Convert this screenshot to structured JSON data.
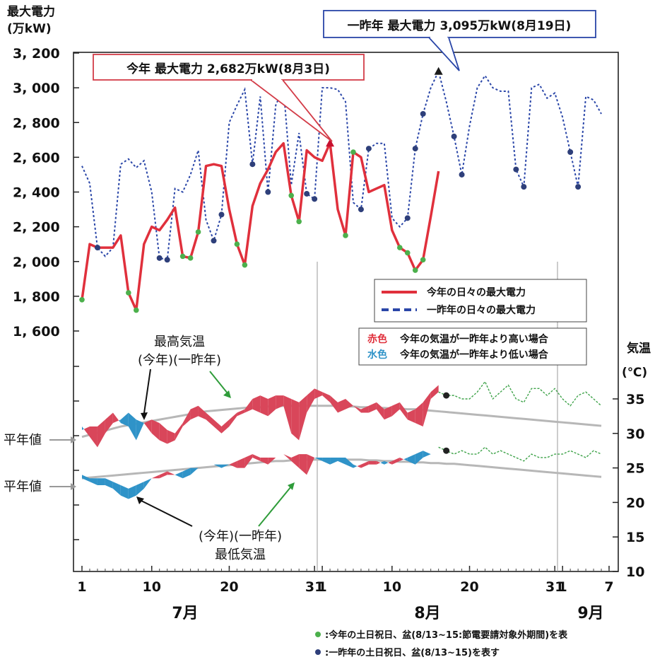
{
  "chart_data": {
    "type": "line",
    "title": "",
    "y_label_left": "最大電力",
    "y_unit_left": "(万kW)",
    "y_ticks_left": [
      "3, 200",
      "3, 000",
      "2, 800",
      "2, 600",
      "2, 400",
      "2, 200",
      "2, 000",
      "1, 800",
      "1, 600"
    ],
    "ylim_left": [
      1600,
      3200
    ],
    "y_label_right": "気温",
    "y_unit_right": "(℃)",
    "y_ticks_right": [
      "35",
      "30",
      "25",
      "20",
      "15",
      "10"
    ],
    "ylim_right": [
      10,
      37
    ],
    "x_ticks": [
      "1",
      "10",
      "20",
      "31",
      "1",
      "10",
      "20",
      "31",
      "1",
      "7"
    ],
    "months": [
      "7月",
      "8月",
      "9月"
    ],
    "x_range_days": [
      1,
      69
    ],
    "grid": "vertical lines at 7/31 and 8/31",
    "legend": {
      "placement": "right-middle",
      "line_this_year": "今年の日々の最大電力",
      "line_two_years_ago": "一昨年の日々の最大電力",
      "red_word": "赤色",
      "red_text": "今年の気温が一昨年より高い場合",
      "blue_word": "水色",
      "blue_text": "今年の気温が一昨年より低い場合"
    },
    "annotations": {
      "peak_this_year": "今年 最大電力 2,682万kW(8月3日)",
      "peak_two_years_ago": "一昨年 最大電力 3,095万kW(8月19日)",
      "max_temp_label": "最高気温",
      "max_temp_sub": "(今年)(一昨年)",
      "min_temp_sub": "(今年)(一昨年)",
      "min_temp_label": "最低気温",
      "normal_label_1": "平年値",
      "normal_label_2": "平年値"
    },
    "series": [
      {
        "name": "今年の日々の最大電力",
        "color": "#e0303c",
        "start_day": 1,
        "values": [
          1780,
          2100,
          2080,
          2080,
          2080,
          2150,
          1820,
          1720,
          2100,
          2200,
          2180,
          2240,
          2310,
          2030,
          2020,
          2170,
          2550,
          2560,
          2550,
          2300,
          2100,
          1980,
          2320,
          2450,
          2530,
          2630,
          2680,
          2380,
          2230,
          2640,
          2600,
          2580,
          2682,
          2300,
          2150,
          2630,
          2600,
          2400,
          2420,
          2440,
          2180,
          2080,
          2050,
          1950,
          2010,
          2260,
          2520
        ],
        "weekend_days": [
          1,
          7,
          8,
          14,
          15,
          16,
          21,
          22,
          28,
          29,
          35,
          36,
          42,
          43,
          44,
          45
        ]
      },
      {
        "name": "一昨年の日々の最大電力",
        "color": "#2a46a8",
        "start_day": 1,
        "values": [
          2550,
          2450,
          2080,
          2030,
          2080,
          2560,
          2590,
          2540,
          2580,
          2400,
          2020,
          2010,
          2420,
          2400,
          2500,
          2640,
          2240,
          2120,
          2270,
          2800,
          2900,
          2990,
          2560,
          2950,
          2400,
          2900,
          3000,
          2440,
          2740,
          2390,
          2360,
          3000,
          3000,
          2990,
          2920,
          2340,
          2300,
          2650,
          2680,
          2680,
          2250,
          2200,
          2250,
          2650,
          2850,
          3000,
          3095,
          2920,
          2720,
          2500,
          2780,
          3000,
          3070,
          3000,
          2980,
          2980,
          2530,
          2430,
          3000,
          3020,
          2940,
          2970,
          2830,
          2630,
          2430,
          2950,
          2930,
          2850
        ],
        "weekend_days": [
          3,
          11,
          12,
          18,
          19,
          23,
          25,
          30,
          31,
          37,
          38,
          43,
          44,
          45,
          49,
          50,
          57,
          58,
          64,
          65
        ]
      },
      {
        "name": "最高気温(今年)",
        "values": [
          30.5,
          31.0,
          31.0,
          32.0,
          33.0,
          31.5,
          31.0,
          29.0,
          31.5,
          32.0,
          31.5,
          30.5,
          30.0,
          31.5,
          33.5,
          34.0,
          33.0,
          32.0,
          31.0,
          32.0,
          33.0,
          33.5,
          35.0,
          35.5,
          35.0,
          35.5,
          35.5,
          35.0,
          34.5,
          35.5,
          36.5,
          36.0,
          35.5,
          34.5,
          35.0,
          34.0,
          33.5,
          34.0,
          34.5,
          33.5,
          34.0,
          34.5,
          33.0,
          33.5,
          34.5,
          36.0,
          37.0
        ]
      },
      {
        "name": "最高気温(一昨年)",
        "values": [
          31.0,
          29.5,
          28.0,
          30.0,
          31.5,
          32.0,
          33.0,
          32.0,
          31.5,
          30.0,
          29.0,
          28.5,
          29.0,
          31.0,
          32.0,
          32.5,
          32.0,
          31.0,
          30.0,
          31.0,
          32.5,
          33.0,
          33.5,
          33.0,
          32.5,
          33.5,
          34.0,
          30.0,
          29.0,
          33.0,
          35.0,
          35.5,
          34.5,
          33.0,
          33.5,
          34.0,
          33.0,
          33.0,
          33.5,
          32.0,
          32.5,
          33.5,
          32.0,
          31.5,
          31.0,
          35.0,
          36.0,
          35.5,
          35.5,
          35.0,
          35.0,
          36.0,
          37.5,
          35.0,
          36.0,
          37.0,
          35.0,
          34.5,
          36.5,
          36.5,
          35.5,
          36.5,
          35.0,
          34.0,
          35.5,
          36.0,
          35.0,
          34.0
        ]
      },
      {
        "name": "最低気温(今年)",
        "values": [
          23.5,
          23.0,
          22.5,
          22.5,
          22.0,
          21.0,
          20.5,
          21.0,
          22.0,
          23.5,
          24.0,
          24.5,
          24.0,
          23.5,
          24.0,
          25.0,
          25.5,
          25.5,
          25.0,
          25.5,
          26.0,
          26.5,
          27.0,
          26.5,
          26.5,
          26.5,
          27.0,
          26.5,
          27.0,
          27.0,
          26.5,
          26.0,
          25.5,
          26.0,
          25.5,
          25.0,
          25.5,
          26.0,
          26.0,
          25.5,
          26.0,
          26.5,
          26.0,
          25.5,
          26.5,
          27.0,
          28.0
        ]
      },
      {
        "name": "最低気温(一昨年)",
        "values": [
          24.0,
          23.5,
          23.5,
          23.5,
          23.0,
          22.5,
          22.0,
          22.5,
          23.0,
          23.5,
          23.5,
          24.0,
          24.0,
          24.5,
          25.0,
          25.0,
          25.5,
          25.5,
          25.5,
          25.5,
          25.0,
          25.0,
          26.5,
          26.0,
          25.5,
          26.5,
          27.0,
          26.0,
          25.0,
          24.0,
          26.5,
          26.5,
          26.5,
          26.5,
          26.5,
          25.5,
          25.0,
          25.5,
          25.5,
          26.0,
          25.5,
          26.0,
          26.5,
          27.0,
          27.5,
          27.0,
          28.0,
          27.5,
          27.0,
          27.5,
          27.0,
          27.0,
          28.0,
          27.0,
          27.5,
          27.0,
          26.5,
          26.0,
          27.0,
          26.5,
          26.5,
          27.0,
          27.0,
          27.5,
          27.0,
          26.5,
          27.5,
          27.0
        ]
      },
      {
        "name": "平年値(最高)",
        "values": [
          29.5,
          29.8,
          30.1,
          30.4,
          30.7,
          31.0,
          31.2,
          31.4,
          31.6,
          31.8,
          32.0,
          32.2,
          32.4,
          32.6,
          32.8,
          33.0,
          33.2,
          33.3,
          33.4,
          33.5,
          33.6,
          33.7,
          33.8,
          33.8,
          33.9,
          33.9,
          34.0,
          34.0,
          34.0,
          34.0,
          34.0,
          34.0,
          34.0,
          34.0,
          33.9,
          33.9,
          33.8,
          33.8,
          33.7,
          33.7,
          33.6,
          33.6,
          33.5,
          33.5,
          33.4,
          33.3,
          33.2,
          33.1,
          33.0,
          32.9,
          32.8,
          32.7,
          32.6,
          32.5,
          32.4,
          32.3,
          32.2,
          32.1,
          32.0,
          31.9,
          31.8,
          31.7,
          31.6,
          31.5,
          31.4,
          31.3,
          31.2,
          31.1
        ]
      },
      {
        "name": "平年値(最低)",
        "values": [
          23.5,
          23.6,
          23.7,
          23.8,
          23.9,
          24.0,
          24.1,
          24.2,
          24.3,
          24.4,
          24.5,
          24.6,
          24.7,
          24.8,
          24.9,
          25.0,
          25.1,
          25.2,
          25.3,
          25.4,
          25.5,
          25.6,
          25.7,
          25.8,
          25.9,
          26.0,
          26.0,
          26.1,
          26.1,
          26.2,
          26.2,
          26.2,
          26.2,
          26.2,
          26.2,
          26.2,
          26.2,
          26.1,
          26.1,
          26.0,
          26.0,
          25.9,
          25.9,
          25.8,
          25.8,
          25.7,
          25.7,
          25.6,
          25.6,
          25.5,
          25.4,
          25.3,
          25.2,
          25.1,
          25.0,
          24.9,
          24.8,
          24.7,
          24.6,
          24.5,
          24.4,
          24.3,
          24.2,
          24.1,
          24.0,
          23.9,
          23.8,
          23.7
        ]
      }
    ],
    "footnotes": {
      "green_dot": ":今年の土日祝日、盆(8/13~15:節電要請対象外期間)を表",
      "navy_dot": ":一昨年の土日祝日、盆(8/13~15)を表す"
    },
    "colors": {
      "this_year": "#e0303c",
      "two_years_ago": "#2a46a8",
      "warmer_fill": "#d9465a",
      "cooler_fill": "#2f93c8",
      "normal": "#b7b7b7",
      "weekend_this_year": "#4cb04c",
      "weekend_two_years_ago": "#2e3f7a",
      "temp_after": "#3fa34a"
    }
  }
}
